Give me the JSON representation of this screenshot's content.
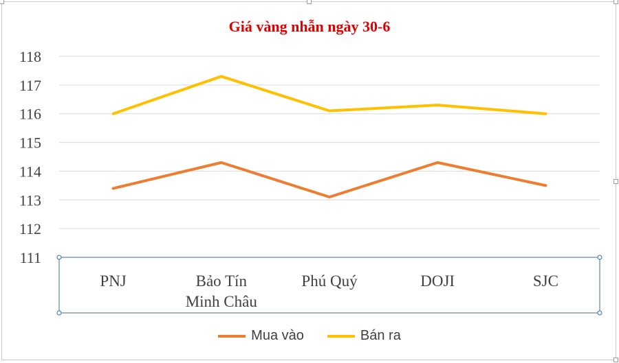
{
  "colors": {
    "title": "#e00000",
    "mua_vao": "#ed7d31",
    "ban_ra": "#ffc000",
    "grid": "#d9d9d9",
    "axis_text": "#404040"
  },
  "chart_data": {
    "type": "line",
    "title": "Giá vàng nhẫn ngày 30-6",
    "categories": [
      [
        "PNJ"
      ],
      [
        "Bảo Tín",
        "Minh Châu"
      ],
      [
        "Phú Quý"
      ],
      [
        "DOJI"
      ],
      [
        "SJC"
      ]
    ],
    "series": [
      {
        "name": "Mua vào",
        "values": [
          113.4,
          114.3,
          113.1,
          114.3,
          113.5
        ]
      },
      {
        "name": "Bán ra",
        "values": [
          116.0,
          117.3,
          116.1,
          116.3,
          116.0
        ]
      }
    ],
    "ylim": [
      111,
      118
    ],
    "yticks": [
      111,
      112,
      113,
      114,
      115,
      116,
      117,
      118
    ],
    "grid": true,
    "legend": "bottom"
  }
}
